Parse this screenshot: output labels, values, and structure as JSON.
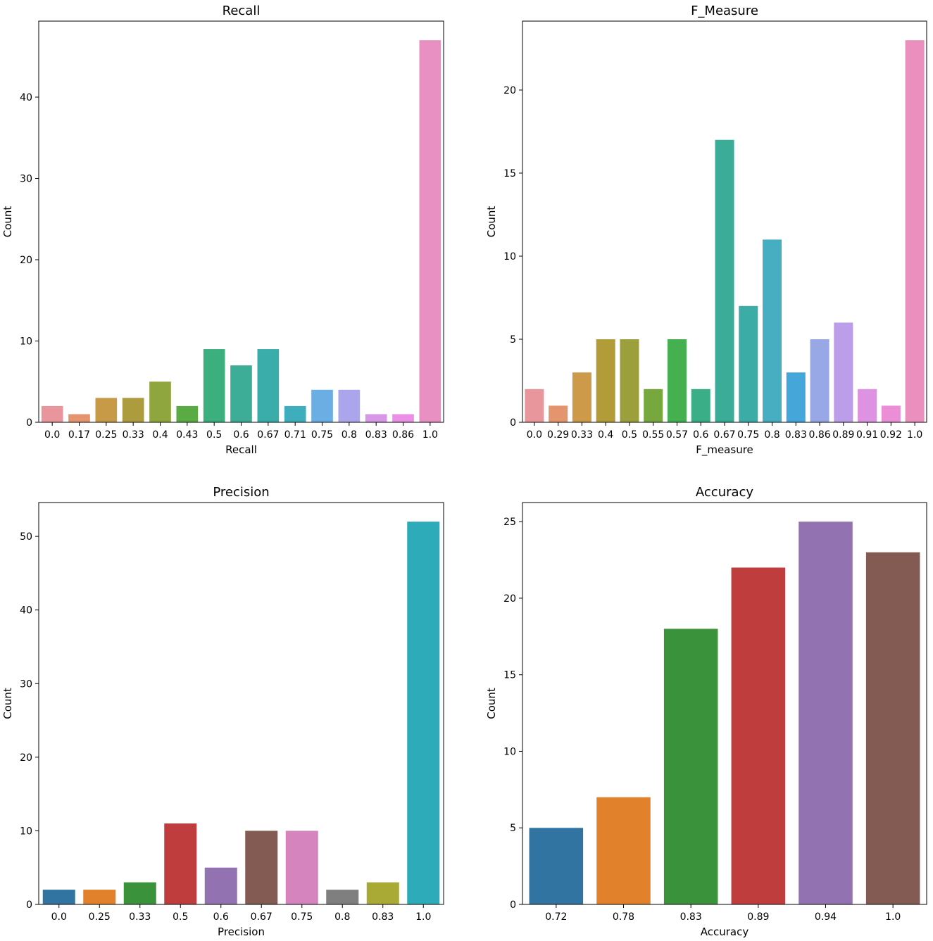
{
  "chart_data": [
    {
      "type": "bar",
      "title": "Recall",
      "xlabel": "Recall",
      "ylabel": "Count",
      "categories": [
        "0.0",
        "0.17",
        "0.25",
        "0.33",
        "0.4",
        "0.43",
        "0.5",
        "0.6",
        "0.67",
        "0.71",
        "0.75",
        "0.8",
        "0.83",
        "0.86",
        "1.0"
      ],
      "values": [
        2,
        1,
        3,
        3,
        5,
        2,
        9,
        7,
        9,
        2,
        4,
        4,
        1,
        1,
        47
      ],
      "ylim": [
        0,
        49.35
      ],
      "yticks": [
        0,
        10,
        20,
        30,
        40
      ],
      "colors": [
        "#e8969b",
        "#e5956d",
        "#c79a48",
        "#ac9c3d",
        "#8fa63f",
        "#5aab43",
        "#3caf7f",
        "#3ead98",
        "#3aaca9",
        "#3eaebd",
        "#6aaee3",
        "#aba5eb",
        "#d597e6",
        "#ea8ee6",
        "#e890c1"
      ]
    },
    {
      "type": "bar",
      "title": "F_Measure",
      "xlabel": "F_measure",
      "ylabel": "Count",
      "categories": [
        "0.0",
        "0.29",
        "0.33",
        "0.4",
        "0.5",
        "0.55",
        "0.57",
        "0.6",
        "0.67",
        "0.75",
        "0.8",
        "0.83",
        "0.86",
        "0.89",
        "0.91",
        "0.92",
        "1.0"
      ],
      "values": [
        2,
        1,
        3,
        5,
        5,
        2,
        5,
        2,
        17,
        7,
        11,
        3,
        5,
        6,
        2,
        1,
        23
      ],
      "ylim": [
        0,
        24.15
      ],
      "yticks": [
        0,
        5,
        10,
        15,
        20
      ],
      "colors": [
        "#e8969b",
        "#e5956d",
        "#cc9a48",
        "#b29c3a",
        "#9ca03c",
        "#76a83e",
        "#44b04f",
        "#3aae86",
        "#3aac98",
        "#3caca7",
        "#46aec0",
        "#45a6d9",
        "#98a7e6",
        "#bc9de9",
        "#dd92e2",
        "#ec8ed6",
        "#ea8fbe"
      ]
    },
    {
      "type": "bar",
      "title": "Precision",
      "xlabel": "Precision",
      "ylabel": "Count",
      "categories": [
        "0.0",
        "0.25",
        "0.33",
        "0.5",
        "0.6",
        "0.67",
        "0.75",
        "0.8",
        "0.83",
        "1.0"
      ],
      "values": [
        2,
        2,
        3,
        11,
        5,
        10,
        10,
        2,
        3,
        52
      ],
      "ylim": [
        0,
        54.6
      ],
      "yticks": [
        0,
        10,
        20,
        30,
        40,
        50
      ],
      "colors": [
        "#3274a1",
        "#e1812c",
        "#3a923a",
        "#c03d3e",
        "#9372b2",
        "#845b53",
        "#d684bd",
        "#7f7f7f",
        "#a9aa35",
        "#2eabb8"
      ]
    },
    {
      "type": "bar",
      "title": "Accuracy",
      "xlabel": "Accuracy",
      "ylabel": "Count",
      "categories": [
        "0.72",
        "0.78",
        "0.83",
        "0.89",
        "0.94",
        "1.0"
      ],
      "values": [
        5,
        7,
        18,
        22,
        25,
        23
      ],
      "ylim": [
        0,
        26.25
      ],
      "yticks": [
        0,
        5,
        10,
        15,
        20,
        25
      ],
      "colors": [
        "#3274a1",
        "#e1812c",
        "#3a923a",
        "#c03d3e",
        "#9372b2",
        "#845b53"
      ]
    }
  ]
}
